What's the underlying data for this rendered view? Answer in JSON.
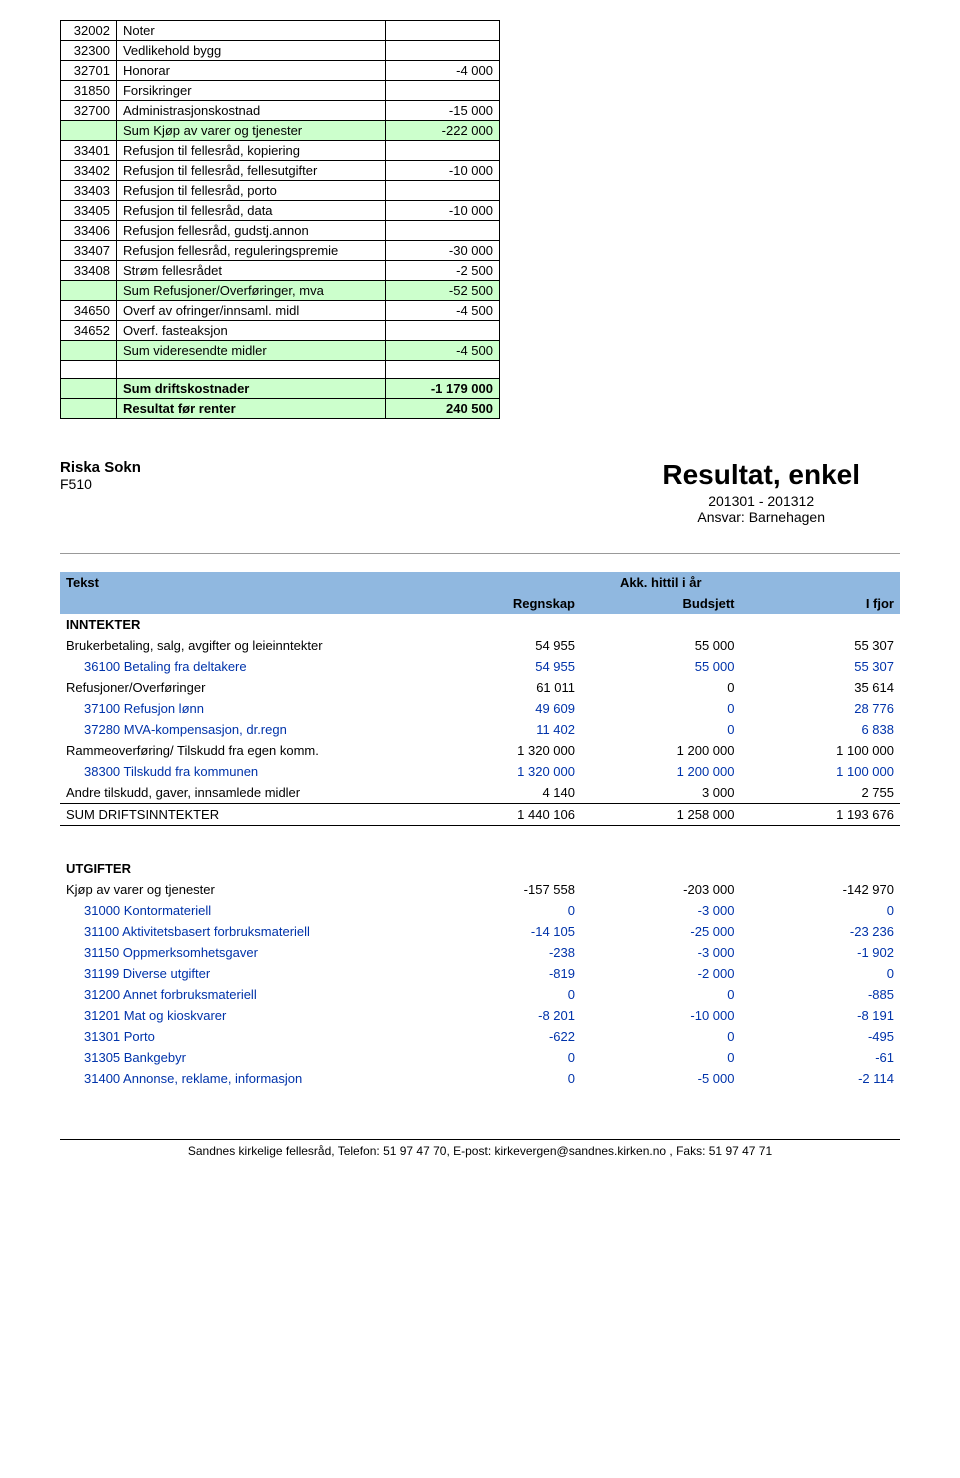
{
  "table1_rows": [
    {
      "code": "32002",
      "text": "Noter",
      "val": "",
      "green": false,
      "bold": false
    },
    {
      "code": "32300",
      "text": "Vedlikehold bygg",
      "val": "",
      "green": false,
      "bold": false
    },
    {
      "code": "32701",
      "text": "Honorar",
      "val": "-4 000",
      "green": false,
      "bold": false
    },
    {
      "code": "31850",
      "text": "Forsikringer",
      "val": "",
      "green": false,
      "bold": false
    },
    {
      "code": "32700",
      "text": "Administrasjonskostnad",
      "val": "-15 000",
      "green": false,
      "bold": false
    },
    {
      "code": "",
      "text": "Sum Kjøp av varer og tjenester",
      "val": "-222 000",
      "green": true,
      "bold": false
    },
    {
      "code": "33401",
      "text": "Refusjon til fellesråd, kopiering",
      "val": "",
      "green": false,
      "bold": false
    },
    {
      "code": "33402",
      "text": "Refusjon til fellesråd, fellesutgifter",
      "val": "-10 000",
      "green": false,
      "bold": false
    },
    {
      "code": "33403",
      "text": "Refusjon til fellesråd, porto",
      "val": "",
      "green": false,
      "bold": false
    },
    {
      "code": "33405",
      "text": "Refusjon til fellesråd, data",
      "val": "-10 000",
      "green": false,
      "bold": false
    },
    {
      "code": "33406",
      "text": "Refusjon fellesråd, gudstj.annon",
      "val": "",
      "green": false,
      "bold": false
    },
    {
      "code": "33407",
      "text": "Refusjon fellesråd, reguleringspremie",
      "val": "-30 000",
      "green": false,
      "bold": false
    },
    {
      "code": "33408",
      "text": "Strøm fellesrådet",
      "val": "-2 500",
      "green": false,
      "bold": false
    },
    {
      "code": "",
      "text": "Sum Refusjoner/Overføringer, mva",
      "val": "-52 500",
      "green": true,
      "bold": false
    },
    {
      "code": "34650",
      "text": "Overf av ofringer/innsaml. midl",
      "val": "-4 500",
      "green": false,
      "bold": false
    },
    {
      "code": "34652",
      "text": "Overf. fasteaksjon",
      "val": "",
      "green": false,
      "bold": false
    },
    {
      "code": "",
      "text": "Sum videresendte midler",
      "val": "-4 500",
      "green": true,
      "bold": false
    }
  ],
  "table1_summary": [
    {
      "text": "Sum driftskostnader",
      "val": "-1 179 000",
      "green": true
    },
    {
      "text": "Resultat før renter",
      "val": "240 500",
      "green": true
    }
  ],
  "org_name": "Riska Sokn",
  "org_sub": "F510",
  "big_title": "Resultat, enkel",
  "period": "201301 - 201312",
  "ansvar": "Ansvar: Barnehagen",
  "header_tekst": "Tekst",
  "header_akk": "Akk. hittil i år",
  "header_regnskap": "Regnskap",
  "header_budsjett": "Budsjett",
  "header_ifjor": "I fjor",
  "inntekter_label": "INNTEKTER",
  "inntekter_rows": [
    {
      "text": "Brukerbetaling, salg, avgifter og leieinntekter",
      "a": "54 955",
      "b": "55 000",
      "c": "55 307",
      "blue": false,
      "indent": false
    },
    {
      "text": "36100 Betaling fra deltakere",
      "a": "54 955",
      "b": "55 000",
      "c": "55 307",
      "blue": true,
      "indent": true
    },
    {
      "text": "Refusjoner/Overføringer",
      "a": "61 011",
      "b": "0",
      "c": "35 614",
      "blue": false,
      "indent": false
    },
    {
      "text": "37100 Refusjon lønn",
      "a": "49 609",
      "b": "0",
      "c": "28 776",
      "blue": true,
      "indent": true
    },
    {
      "text": "37280 MVA-kompensasjon, dr.regn",
      "a": "11 402",
      "b": "0",
      "c": "6 838",
      "blue": true,
      "indent": true
    },
    {
      "text": "Rammeoverføring/ Tilskudd fra egen komm.",
      "a": "1 320 000",
      "b": "1 200 000",
      "c": "1 100 000",
      "blue": false,
      "indent": false
    },
    {
      "text": "38300 Tilskudd fra kommunen",
      "a": "1 320 000",
      "b": "1 200 000",
      "c": "1 100 000",
      "blue": true,
      "indent": true
    },
    {
      "text": "Andre tilskudd, gaver, innsamlede midler",
      "a": "4 140",
      "b": "3 000",
      "c": "2 755",
      "blue": false,
      "indent": false,
      "underline": true
    }
  ],
  "inntekter_sum": {
    "text": "SUM DRIFTSINNTEKTER",
    "a": "1 440 106",
    "b": "1 258 000",
    "c": "1 193 676"
  },
  "utgifter_label": "UTGIFTER",
  "utgifter_rows": [
    {
      "text": "Kjøp av varer og tjenester",
      "a": "-157 558",
      "b": "-203 000",
      "c": "-142 970",
      "blue": false,
      "indent": false
    },
    {
      "text": "31000 Kontormateriell",
      "a": "0",
      "b": "-3 000",
      "c": "0",
      "blue": true,
      "indent": true
    },
    {
      "text": "31100 Aktivitetsbasert forbruksmateriell",
      "a": "-14 105",
      "b": "-25 000",
      "c": "-23 236",
      "blue": true,
      "indent": true
    },
    {
      "text": "31150 Oppmerksomhetsgaver",
      "a": "-238",
      "b": "-3 000",
      "c": "-1 902",
      "blue": true,
      "indent": true
    },
    {
      "text": "31199 Diverse utgifter",
      "a": "-819",
      "b": "-2 000",
      "c": "0",
      "blue": true,
      "indent": true
    },
    {
      "text": "31200 Annet forbruksmateriell",
      "a": "0",
      "b": "0",
      "c": "-885",
      "blue": true,
      "indent": true
    },
    {
      "text": "31201 Mat og kioskvarer",
      "a": "-8 201",
      "b": "-10 000",
      "c": "-8 191",
      "blue": true,
      "indent": true
    },
    {
      "text": "31301 Porto",
      "a": "-622",
      "b": "0",
      "c": "-495",
      "blue": true,
      "indent": true
    },
    {
      "text": "31305 Bankgebyr",
      "a": "0",
      "b": "0",
      "c": "-61",
      "blue": true,
      "indent": true
    },
    {
      "text": "31400 Annonse, reklame, informasjon",
      "a": "0",
      "b": "-5 000",
      "c": "-2 114",
      "blue": true,
      "indent": true
    }
  ],
  "footer": "Sandnes kirkelige fellesråd, Telefon: 51 97 47 70, E-post: kirkevergen@sandnes.kirken.no , Faks: 51 97 47 71",
  "colors": {
    "green": "#ccffcc",
    "header_blue": "#90b8e0",
    "link_blue": "#0033aa"
  }
}
